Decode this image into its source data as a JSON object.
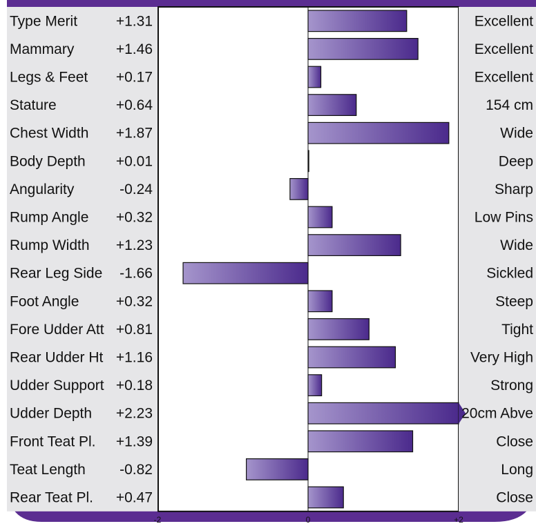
{
  "chart_data": {
    "type": "bar",
    "orientation": "horizontal",
    "xlim": [
      -2,
      2
    ],
    "x_ticks": [
      "-2",
      "0",
      "+2"
    ],
    "grid": false,
    "legend": "none",
    "categories": [
      "Type Merit",
      "Mammary",
      "Legs & Feet",
      "Stature",
      "Chest Width",
      "Body Depth",
      "Angularity",
      "Rump Angle",
      "Rump Width",
      "Rear Leg Side",
      "Foot Angle",
      "Fore Udder Att",
      "Rear Udder Ht",
      "Udder Support",
      "Udder Depth",
      "Front Teat Pl.",
      "Teat Length",
      "Rear Teat Pl."
    ],
    "values": [
      1.31,
      1.46,
      0.17,
      0.64,
      1.87,
      0.01,
      -0.24,
      0.32,
      1.23,
      -1.66,
      0.32,
      0.81,
      1.16,
      0.18,
      2.23,
      1.39,
      -0.82,
      0.47
    ],
    "value_labels": [
      "+1.31",
      "+1.46",
      "+0.17",
      "+0.64",
      "+1.87",
      "+0.01",
      "-0.24",
      "+0.32",
      "+1.23",
      "-1.66",
      "+0.32",
      "+0.81",
      "+1.16",
      "+0.18",
      "+2.23",
      "+1.39",
      "-0.82",
      "+0.47"
    ],
    "descriptors": [
      "Excellent",
      "Excellent",
      "Excellent",
      "154 cm",
      "Wide",
      "Deep",
      "Sharp",
      "Low Pins",
      "Wide",
      "Sickled",
      "Steep",
      "Tight",
      "Very High",
      "Strong",
      "20cm Abve",
      "Close",
      "Long",
      "Close"
    ]
  },
  "colors": {
    "frame": "#5b2d91",
    "bar_light": "#a595cc",
    "bar_dark": "#4b2a8c",
    "label_panel": "#e6e6e8"
  }
}
